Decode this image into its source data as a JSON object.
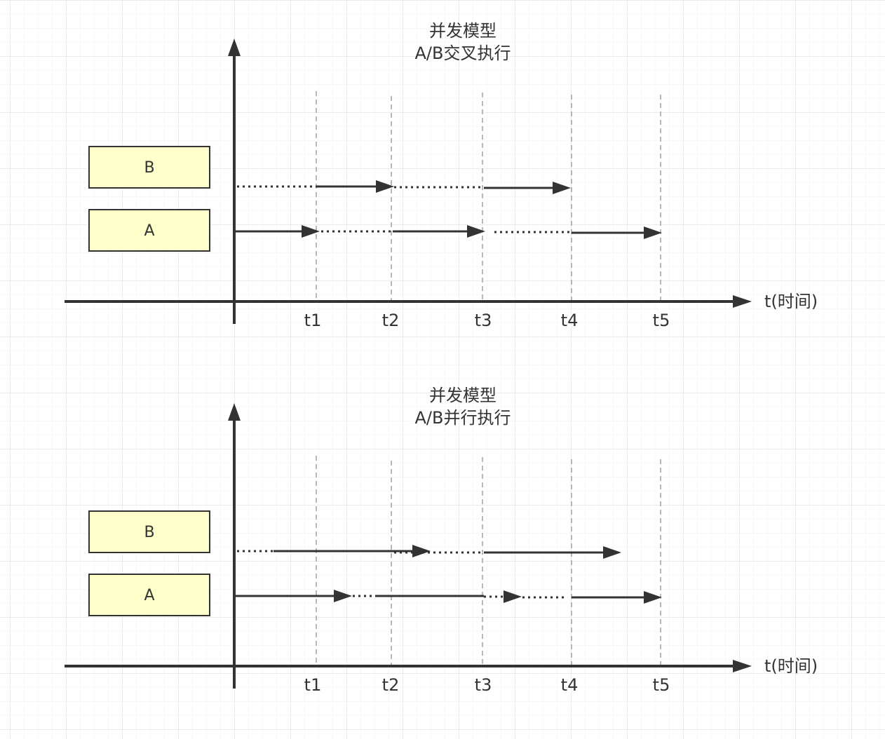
{
  "colors": {
    "background": "#ffffff",
    "grid_minor": "#f2f2f2",
    "grid_major": "#e6e6e6",
    "axis": "#333333",
    "guide_line": "#a0a0a0",
    "task_box_fill": "#ffffcc",
    "task_box_stroke": "#333333",
    "text": "#333333"
  },
  "diagrams": [
    {
      "title_line1": "并发模型",
      "title_line2": "A/B交叉执行",
      "axis_label": "t(时间)",
      "ticks": [
        "t1",
        "t2",
        "t3",
        "t4",
        "t5"
      ],
      "tasks": [
        {
          "label": "B",
          "segments": [
            {
              "from": 0,
              "to": 1,
              "style": "dotted"
            },
            {
              "from": 1,
              "to": 2,
              "style": "solid",
              "arrow": true
            },
            {
              "from": 2,
              "to": 3,
              "style": "dotted"
            },
            {
              "from": 3,
              "to": 4,
              "style": "solid",
              "arrow": true
            }
          ]
        },
        {
          "label": "A",
          "segments": [
            {
              "from": 0,
              "to": 1,
              "style": "solid",
              "arrow": true
            },
            {
              "from": 1,
              "to": 2,
              "style": "dotted"
            },
            {
              "from": 2,
              "to": 3,
              "style": "solid",
              "arrow": true
            },
            {
              "from": 3.1,
              "to": 4,
              "style": "dotted"
            },
            {
              "from": 4,
              "to": 5,
              "style": "solid",
              "arrow": true
            }
          ]
        }
      ]
    },
    {
      "title_line1": "并发模型",
      "title_line2": "A/B并行执行",
      "axis_label": "t(时间)",
      "ticks": [
        "t1",
        "t2",
        "t3",
        "t4",
        "t5"
      ],
      "tasks": [
        {
          "label": "B",
          "segments": [
            {
              "from": 0,
              "to": 0.45,
              "style": "dotted"
            },
            {
              "from": 0.45,
              "to": 2.45,
              "style": "solid",
              "arrow": true
            },
            {
              "from": 2.0,
              "to": 3.0,
              "style": "dotted"
            },
            {
              "from": 3.0,
              "to": 4.55,
              "style": "solid",
              "arrow": true
            }
          ]
        },
        {
          "label": "A",
          "segments": [
            {
              "from": 0,
              "to": 1.45,
              "style": "solid",
              "arrow": true
            },
            {
              "from": 1.45,
              "to": 1.8,
              "style": "dotted"
            },
            {
              "from": 1.8,
              "to": 3.4,
              "style": "solid",
              "arrow": true
            },
            {
              "from": 3.0,
              "to": 3.4,
              "style": "dotted"
            },
            {
              "from": 3.4,
              "to": 3.9,
              "style": "dotted"
            },
            {
              "from": 4.0,
              "to": 5.0,
              "style": "solid",
              "arrow": true
            }
          ]
        }
      ]
    }
  ]
}
